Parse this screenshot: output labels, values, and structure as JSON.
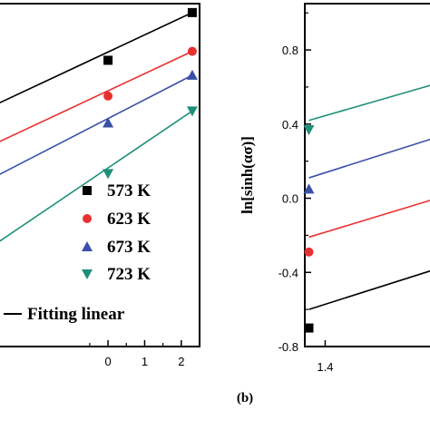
{
  "chart_data": [
    {
      "type": "line",
      "panel": "a",
      "xlim": [
        -3,
        2.5
      ],
      "ylim": [
        -1.2,
        1.1
      ],
      "x_ticks": [
        "0",
        "1",
        "2"
      ],
      "x_tick_values": [
        0,
        1,
        2
      ],
      "legend": {
        "placement": "lower-right",
        "entries": [
          {
            "label": "573 K",
            "marker": "square",
            "color": "#000000"
          },
          {
            "label": "623 K",
            "marker": "circle",
            "color": "#e8312f"
          },
          {
            "label": "673 K",
            "marker": "triangle-up",
            "color": "#3a4fa8"
          },
          {
            "label": "723 K",
            "marker": "triangle-down",
            "color": "#1f8f7a"
          },
          {
            "label": "Fitting linear",
            "marker": "line",
            "color": "#000000"
          }
        ]
      },
      "series": [
        {
          "name": "573 K",
          "color": "#000000",
          "marker": "square",
          "points": [
            [
              0,
              0.72
            ],
            [
              2.3,
              1.04
            ]
          ],
          "fit": [
            [
              -3,
              0.43
            ],
            [
              2.3,
              1.04
            ]
          ]
        },
        {
          "name": "623 K",
          "color": "#e8312f",
          "marker": "circle",
          "points": [
            [
              0,
              0.48
            ],
            [
              2.3,
              0.78
            ]
          ],
          "fit": [
            [
              -3,
              0.17
            ],
            [
              2.3,
              0.78
            ]
          ]
        },
        {
          "name": "673 K",
          "color": "#3a4fa8",
          "marker": "triangle-up",
          "points": [
            [
              0,
              0.3
            ],
            [
              2.3,
              0.62
            ]
          ],
          "fit": [
            [
              -3,
              -0.05
            ],
            [
              2.3,
              0.62
            ]
          ]
        },
        {
          "name": "723 K",
          "color": "#1f8f7a",
          "marker": "triangle-down",
          "points": [
            [
              0,
              -0.04
            ],
            [
              2.3,
              0.38
            ]
          ],
          "fit": [
            [
              -3,
              -0.5
            ],
            [
              2.3,
              0.38
            ]
          ]
        }
      ]
    },
    {
      "type": "line",
      "panel": "b",
      "label": "(b)",
      "ylabel": "ln[sinh(ασ)]",
      "xlim": [
        1.3,
        1.95
      ],
      "ylim": [
        -0.8,
        1.05
      ],
      "x_ticks": [
        "1.4"
      ],
      "x_tick_values": [
        1.4
      ],
      "y_ticks": [
        "-0.8",
        "-0.4",
        "0.0",
        "0.4",
        "0.8"
      ],
      "y_tick_values": [
        -0.8,
        -0.4,
        0.0,
        0.4,
        0.8
      ],
      "series": [
        {
          "name": "573 K",
          "color": "#000000",
          "marker": "square",
          "points": [
            [
              1.32,
              -0.7
            ]
          ],
          "fit": [
            [
              1.32,
              -0.6
            ],
            [
              1.95,
              -0.38
            ]
          ]
        },
        {
          "name": "623 K",
          "color": "#e8312f",
          "marker": "circle",
          "points": [
            [
              1.32,
              -0.29
            ]
          ],
          "fit": [
            [
              1.32,
              -0.21
            ],
            [
              1.95,
              0.0
            ]
          ]
        },
        {
          "name": "673 K",
          "color": "#3a4fa8",
          "marker": "triangle-up",
          "points": [
            [
              1.32,
              0.05
            ]
          ],
          "fit": [
            [
              1.32,
              0.11
            ],
            [
              1.95,
              0.33
            ]
          ]
        },
        {
          "name": "723 K",
          "color": "#1f8f7a",
          "marker": "triangle-down",
          "points": [
            [
              1.32,
              0.37
            ]
          ],
          "fit": [
            [
              1.32,
              0.42
            ],
            [
              1.95,
              0.62
            ]
          ]
        }
      ]
    }
  ]
}
